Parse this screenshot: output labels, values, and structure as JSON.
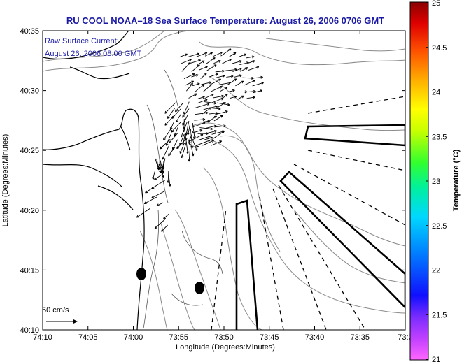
{
  "title": "RU COOL  NOAA–18  Sea Surface Temperature:  August 26, 2006 0706 GMT",
  "annotation": {
    "line1": "Raw Surface Current:",
    "line2": "August 26, 2006 08:00 GMT"
  },
  "scale": {
    "label": "50 cm/s"
  },
  "axes": {
    "xlabel": "Longitude (Degrees:Minutes)",
    "ylabel": "Latitude (Degrees:Minutes)",
    "xticks": [
      "74:10",
      "74:05",
      "74:00",
      "73:55",
      "73:50",
      "73:45",
      "73:40",
      "73:35",
      "73:3"
    ],
    "yticks": [
      "40:35",
      "40:30",
      "40:25",
      "40:20",
      "40:15",
      "40:10"
    ]
  },
  "colorbar": {
    "label": "Temperature (°C)",
    "ticks": [
      "25",
      "24.5",
      "24",
      "23.5",
      "23",
      "22.5",
      "22",
      "21.5",
      "21"
    ],
    "min": 21,
    "max": 25
  },
  "colors": {
    "title": "#1a1aa6",
    "contour": "#8a8a8a",
    "coast": "#000000"
  }
}
